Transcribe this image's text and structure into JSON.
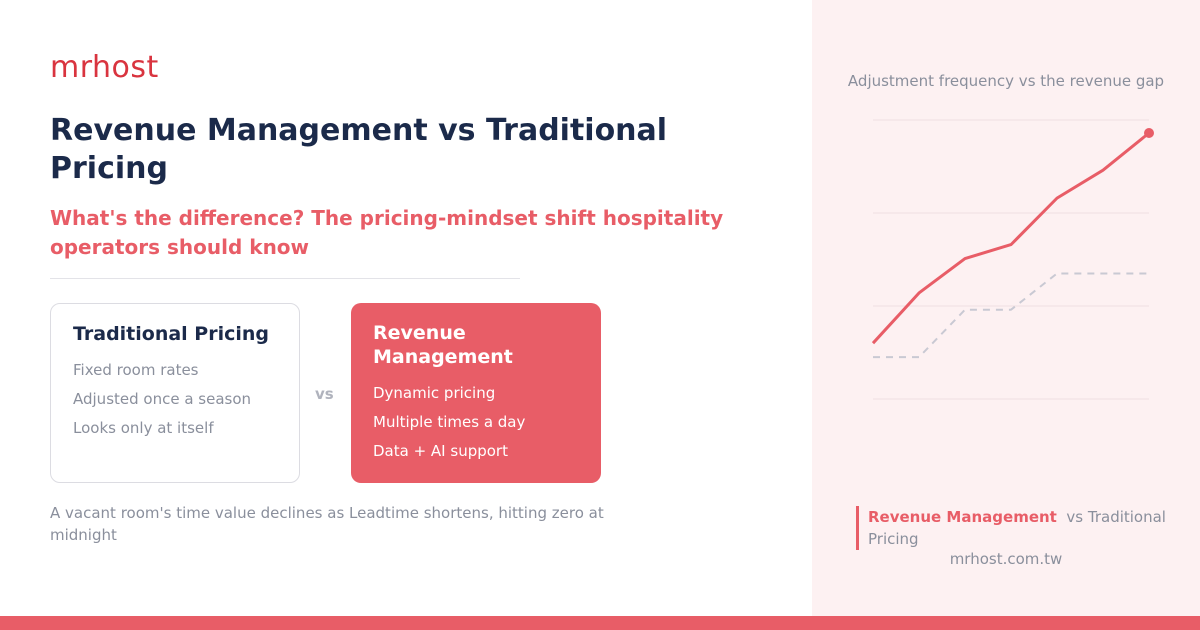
{
  "logo": "mrhost",
  "title": "Revenue Management vs Traditional Pricing",
  "subtitle": "What's the difference? The pricing-mindset shift hospitality operators should know",
  "cards": [
    {
      "title": "Traditional Pricing",
      "items": [
        "Fixed room rates",
        "Adjusted once a season",
        "Looks only at itself"
      ]
    },
    {
      "title": "Revenue Management",
      "items": [
        "Dynamic pricing",
        "Multiple times a day",
        "Data + AI support"
      ]
    }
  ],
  "versus": "vs",
  "footnote": "A vacant room's time value declines as Leadtime shortens, hitting zero at midnight",
  "website": "mrhost.com.tw",
  "chart_data": {
    "type": "line",
    "title": "Adjustment frequency vs the revenue gap",
    "categories": [
      null,
      null,
      null,
      null,
      null,
      null,
      null
    ],
    "series": [
      {
        "name": "Revenue Management",
        "color": "#e85d67",
        "values": [
          0.6,
          1.14,
          1.51,
          1.66,
          2.16,
          2.46,
          2.86
        ],
        "dashed": false,
        "end_marker": true
      },
      {
        "name": "Traditional Pricing",
        "color": "#c9c9d3",
        "values": [
          0.45,
          0.45,
          0.96,
          0.96,
          1.35,
          1.35,
          1.35
        ],
        "dashed": true,
        "end_marker": false
      }
    ],
    "ylim": [
      0,
      3
    ],
    "yticks": [
      0,
      1,
      2,
      3
    ],
    "grid": true,
    "show_tick_labels": false,
    "legend_joiner": "vs"
  }
}
